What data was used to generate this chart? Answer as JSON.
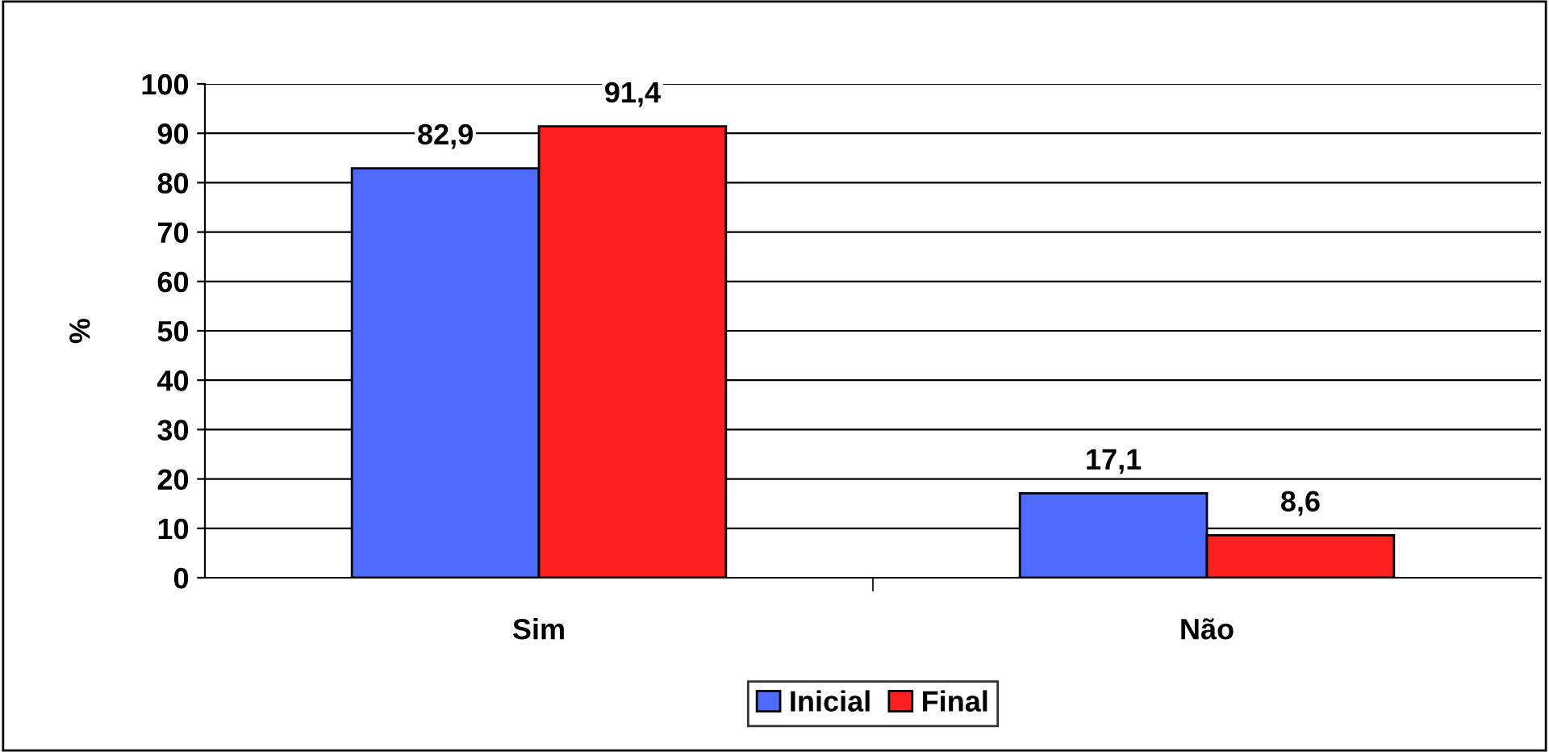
{
  "chart_data": {
    "type": "bar",
    "ylabel": "%",
    "categories": [
      "Sim",
      "Não"
    ],
    "series": [
      {
        "name": "Inicial",
        "color": "#4d6cff",
        "values": [
          82.9,
          17.1
        ],
        "value_labels": [
          "82,9",
          "17,1"
        ]
      },
      {
        "name": "Final",
        "color": "#ff2020",
        "values": [
          91.4,
          8.6
        ],
        "value_labels": [
          "91,4",
          "8,6"
        ]
      }
    ],
    "ylim": [
      0,
      100
    ],
    "yticks": [
      0,
      10,
      20,
      30,
      40,
      50,
      60,
      70,
      80,
      90,
      100
    ],
    "grid": "y",
    "legend": "bottom"
  }
}
